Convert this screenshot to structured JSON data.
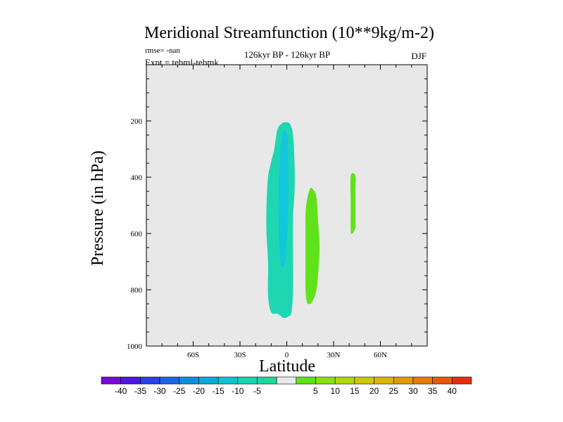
{
  "chart_data": {
    "type": "contour",
    "title": "Meridional Streamfunction (10**9kg/m-2)",
    "subtitle_left_1": "rmse= -nan",
    "subtitle_left_2": "Expt = tebml-tebmk",
    "subtitle_center": "126kyr BP - 126kyr BP",
    "subtitle_right": "DJF",
    "xlabel": "Latitude",
    "ylabel": "Pressure (in hPa)",
    "xlim": [
      -90,
      90
    ],
    "ylim": [
      1000,
      0
    ],
    "x_ticks": [
      {
        "value": -60,
        "label": "60S"
      },
      {
        "value": -30,
        "label": "30S"
      },
      {
        "value": 0,
        "label": "0"
      },
      {
        "value": 30,
        "label": "30N"
      },
      {
        "value": 60,
        "label": "60N"
      }
    ],
    "y_ticks": [
      {
        "value": 200,
        "label": "200"
      },
      {
        "value": 400,
        "label": "400"
      },
      {
        "value": 600,
        "label": "600"
      },
      {
        "value": 800,
        "label": "800"
      },
      {
        "value": 1000,
        "label": "1000"
      }
    ],
    "background_color": "#e8e8e8",
    "regions": [
      {
        "name": "cell-neg-5-outer",
        "level": "-10 to -5",
        "color": "#1ed6b2",
        "outline": [
          [
            -1,
            205
          ],
          [
            2,
            210
          ],
          [
            4,
            250
          ],
          [
            5,
            350
          ],
          [
            5,
            450
          ],
          [
            4,
            550
          ],
          [
            4,
            700
          ],
          [
            4,
            800
          ],
          [
            3,
            880
          ],
          [
            1,
            895
          ],
          [
            -2,
            900
          ],
          [
            -6,
            885
          ],
          [
            -10,
            880
          ],
          [
            -12,
            820
          ],
          [
            -12,
            700
          ],
          [
            -13,
            600
          ],
          [
            -13,
            500
          ],
          [
            -12,
            400
          ],
          [
            -10,
            345
          ],
          [
            -8,
            300
          ],
          [
            -6,
            230
          ],
          [
            -3,
            208
          ]
        ]
      },
      {
        "name": "cell-neg-10-inner",
        "level": "-15 to -10",
        "color": "#13c6dc",
        "outline": [
          [
            -2,
            235
          ],
          [
            0,
            245
          ],
          [
            1,
            300
          ],
          [
            1,
            400
          ],
          [
            1,
            500
          ],
          [
            0,
            620
          ],
          [
            -1,
            700
          ],
          [
            -3,
            720
          ],
          [
            -4,
            700
          ],
          [
            -5,
            620
          ],
          [
            -5,
            500
          ],
          [
            -5,
            400
          ],
          [
            -4,
            300
          ],
          [
            -3,
            260
          ]
        ]
      },
      {
        "name": "cell-pos-5-mid",
        "level": "5 to 10",
        "color": "#5fe21a",
        "outline": [
          [
            15,
            440
          ],
          [
            17,
            445
          ],
          [
            19,
            470
          ],
          [
            20,
            550
          ],
          [
            21,
            650
          ],
          [
            20,
            750
          ],
          [
            19,
            800
          ],
          [
            17,
            835
          ],
          [
            15,
            850
          ],
          [
            13,
            845
          ],
          [
            12,
            800
          ],
          [
            12,
            700
          ],
          [
            12,
            600
          ],
          [
            12,
            530
          ],
          [
            13,
            480
          ]
        ]
      },
      {
        "name": "cell-pos-5-north",
        "level": "5 to 10",
        "color": "#5fe21a",
        "outline": [
          [
            41,
            395
          ],
          [
            44,
            395
          ],
          [
            44,
            450
          ],
          [
            44,
            550
          ],
          [
            44,
            580
          ],
          [
            42,
            600
          ],
          [
            41,
            590
          ],
          [
            41,
            500
          ]
        ]
      }
    ],
    "colorbar": {
      "colors": [
        "#7a0ad6",
        "#4f17e0",
        "#2a40e6",
        "#1a68e6",
        "#0f8ee0",
        "#0aabd6",
        "#0ec4cc",
        "#14d4b4",
        "#1ed6a0",
        "#e9e9e9",
        "#5fe21a",
        "#8ae20c",
        "#b0d80a",
        "#ccc80a",
        "#ddb40a",
        "#e0990a",
        "#e37a0a",
        "#e45a0a",
        "#e4300a"
      ],
      "labels": [
        "-40",
        "-35",
        "-30",
        "-25",
        "-20",
        "-15",
        "-10",
        "-5",
        "5",
        "10",
        "15",
        "20",
        "25",
        "30",
        "35",
        "40"
      ]
    }
  }
}
